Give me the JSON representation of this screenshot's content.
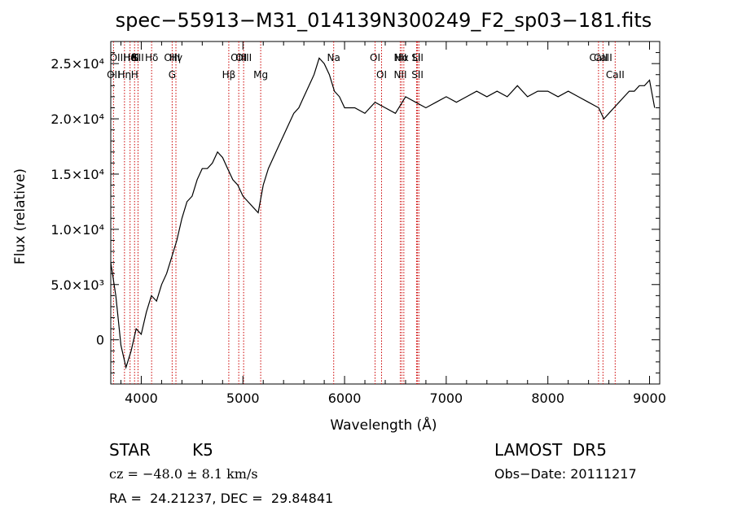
{
  "chart_data": {
    "type": "line",
    "title": "spec−55913−M31_014139N300249_F2_sp03−181.fits",
    "xlabel": "Wavelength (Å)",
    "ylabel": "Flux (relative)",
    "xlim": [
      3700,
      9100
    ],
    "ylim": [
      -4000,
      27000
    ],
    "xticks": [
      {
        "value": 4000,
        "label": "4000"
      },
      {
        "value": 5000,
        "label": "5000"
      },
      {
        "value": 6000,
        "label": "6000"
      },
      {
        "value": 7000,
        "label": "7000"
      },
      {
        "value": 8000,
        "label": "8000"
      },
      {
        "value": 9000,
        "label": "9000"
      }
    ],
    "yticks": [
      {
        "value": 0,
        "label": "0"
      },
      {
        "value": 5000,
        "label": "5.0×10³"
      },
      {
        "value": 10000,
        "label": "1.0×10⁴"
      },
      {
        "value": 15000,
        "label": "1.5×10⁴"
      },
      {
        "value": 20000,
        "label": "2.0×10⁴"
      },
      {
        "value": 25000,
        "label": "2.5×10⁴"
      }
    ],
    "grid": false,
    "series": [
      {
        "x": [
          3700,
          3750,
          3800,
          3850,
          3900,
          3950,
          4000,
          4050,
          4100,
          4150,
          4200,
          4250,
          4300,
          4350,
          4400,
          4450,
          4500,
          4550,
          4600,
          4650,
          4700,
          4750,
          4800,
          4850,
          4900,
          4950,
          5000,
          5050,
          5100,
          5150,
          5200,
          5250,
          5300,
          5350,
          5400,
          5450,
          5500,
          5550,
          5600,
          5650,
          5700,
          5750,
          5800,
          5850,
          5900,
          5950,
          6000,
          6100,
          6200,
          6300,
          6400,
          6500,
          6600,
          6700,
          6800,
          6900,
          7000,
          7100,
          7200,
          7300,
          7400,
          7500,
          7600,
          7700,
          7800,
          7900,
          8000,
          8100,
          8200,
          8300,
          8400,
          8500,
          8550,
          8600,
          8650,
          8700,
          8750,
          8800,
          8850,
          8900,
          8950,
          9000,
          9050
        ],
        "y": [
          7000,
          4000,
          -500,
          -2500,
          -1000,
          1000,
          500,
          2500,
          4000,
          3500,
          5000,
          6000,
          7500,
          9000,
          11000,
          12500,
          13000,
          14500,
          15500,
          15500,
          16000,
          17000,
          16500,
          15500,
          14500,
          14000,
          13000,
          12500,
          12000,
          11500,
          14000,
          15500,
          16500,
          17500,
          18500,
          19500,
          20500,
          21000,
          22000,
          23000,
          24000,
          25500,
          25000,
          24000,
          22500,
          22000,
          21000,
          21000,
          20500,
          21500,
          21000,
          20500,
          22000,
          21500,
          21000,
          21500,
          22000,
          21500,
          22000,
          22500,
          22000,
          22500,
          22000,
          23000,
          22000,
          22500,
          22500,
          22000,
          22500,
          22000,
          21500,
          21000,
          20000,
          20500,
          21000,
          21500,
          22000,
          22500,
          22500,
          23000,
          23000,
          23500,
          21000
        ]
      }
    ],
    "lines": [
      {
        "x": 3890,
        "upper": "Hθ",
        "lower": ""
      },
      {
        "x": 3727,
        "upper": "",
        "lower": "OII"
      },
      {
        "x": 3835,
        "upper": "OIIHeI",
        "lower": "Hη"
      },
      {
        "x": 3934,
        "upper": "K",
        "lower": "H"
      },
      {
        "x": 3968,
        "upper": "SII",
        "lower": ""
      },
      {
        "x": 4102,
        "upper": "Hδ",
        "lower": ""
      },
      {
        "x": 4304,
        "upper": "OIII",
        "lower": "G"
      },
      {
        "x": 4341,
        "upper": "Hγ",
        "lower": ""
      },
      {
        "x": 4861,
        "upper": "",
        "lower": "Hβ"
      },
      {
        "x": 4959,
        "upper": "OIII",
        "lower": ""
      },
      {
        "x": 5007,
        "upper": "OIII",
        "lower": ""
      },
      {
        "x": 5175,
        "upper": "",
        "lower": "Mg"
      },
      {
        "x": 5893,
        "upper": "Na",
        "lower": ""
      },
      {
        "x": 6300,
        "upper": "OI",
        "lower": ""
      },
      {
        "x": 6364,
        "upper": "",
        "lower": "OI"
      },
      {
        "x": 6548,
        "upper": "NII",
        "lower": "NII"
      },
      {
        "x": 6563,
        "upper": "Hα",
        "lower": ""
      },
      {
        "x": 6583,
        "upper": "",
        "lower": ""
      },
      {
        "x": 6708,
        "upper": "Li",
        "lower": ""
      },
      {
        "x": 6717,
        "upper": "SII",
        "lower": "SII"
      },
      {
        "x": 6731,
        "upper": "",
        "lower": ""
      },
      {
        "x": 8498,
        "upper": "CaII",
        "lower": ""
      },
      {
        "x": 8542,
        "upper": "CaII",
        "lower": ""
      },
      {
        "x": 8662,
        "upper": "",
        "lower": "CaII"
      }
    ]
  },
  "info": {
    "object_class": "STAR",
    "subclass": "K5",
    "survey": "LAMOST  DR5",
    "cz": "cz = −48.0 ± 8.1 km/s",
    "obs_date": "Obs−Date: 20111217",
    "coords": "RA =  24.21237, DEC =  29.84841"
  },
  "colors": {
    "spectrum": "#000000",
    "line_markers": "#cc0000",
    "axes": "#000000",
    "background": "#ffffff"
  }
}
